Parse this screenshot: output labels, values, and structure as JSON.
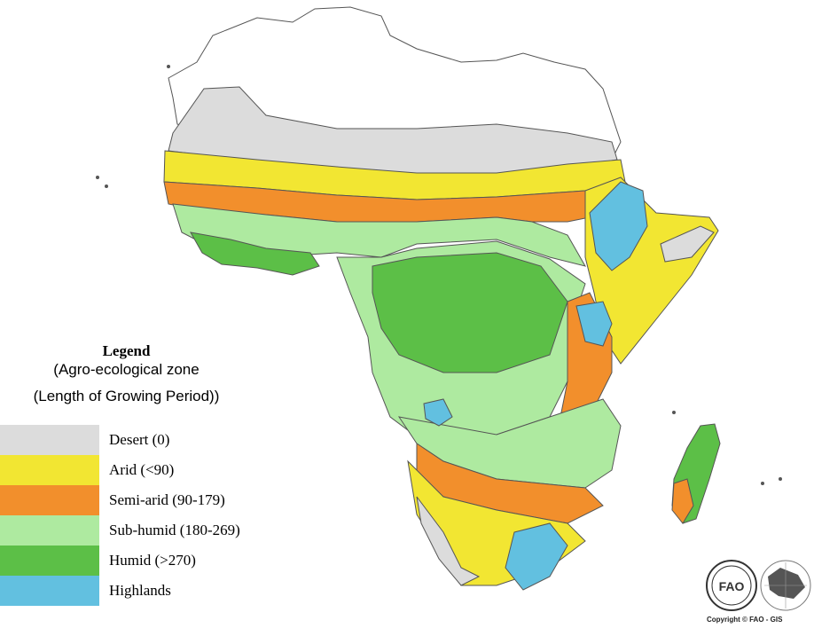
{
  "legend": {
    "title": "Legend",
    "subtitle1": "(Agro-ecological zone",
    "subtitle2": "(Length of Growing Period))",
    "items": [
      {
        "label": "Desert (0)",
        "color": "#dcdcdc"
      },
      {
        "label": "Arid (<90)",
        "color": "#f2e632"
      },
      {
        "label": "Semi-arid (90-179)",
        "color": "#f28f2c"
      },
      {
        "label": "Sub-humid (180-269)",
        "color": "#aeeaa0"
      },
      {
        "label": "Humid (>270)",
        "color": "#5cbf47"
      },
      {
        "label": "Highlands",
        "color": "#62c0e0"
      }
    ]
  },
  "copyright": "Copyright © FAO - GIS"
}
